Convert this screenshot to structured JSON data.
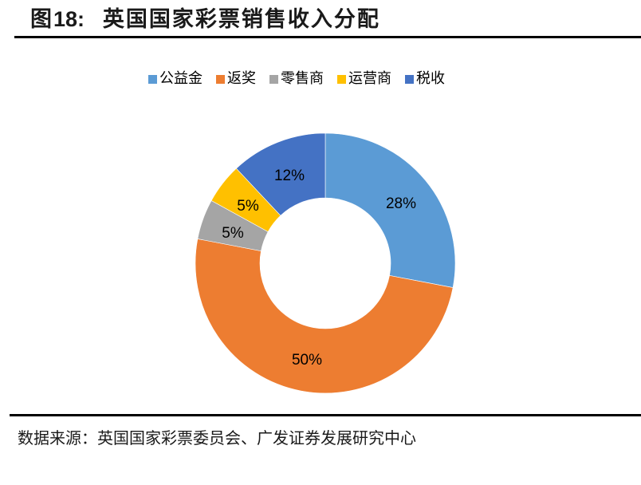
{
  "figure": {
    "title_prefix": "图",
    "title_number": "18:",
    "title_text": "英国国家彩票销售收入分配",
    "source": "数据来源：英国国家彩票委员会、广发证券发展研究中心"
  },
  "legend": [
    {
      "label": "公益金",
      "color": "#5B9BD5"
    },
    {
      "label": "返奖",
      "color": "#ED7D31"
    },
    {
      "label": "零售商",
      "color": "#A5A5A5"
    },
    {
      "label": "运营商",
      "color": "#FFC000"
    },
    {
      "label": "税收",
      "color": "#4472C4"
    }
  ],
  "slices": [
    {
      "label": "28%"
    },
    {
      "label": "50%"
    },
    {
      "label": "5%"
    },
    {
      "label": "5%"
    },
    {
      "label": "12%"
    }
  ],
  "chart_data": {
    "type": "pie",
    "subtype": "doughnut",
    "title": "英国国家彩票销售收入分配",
    "categories": [
      "公益金",
      "返奖",
      "零售商",
      "运营商",
      "税收"
    ],
    "values": [
      28,
      50,
      5,
      5,
      12
    ],
    "unit": "%",
    "colors": [
      "#5B9BD5",
      "#ED7D31",
      "#A5A5A5",
      "#FFC000",
      "#4472C4"
    ],
    "start_angle_deg": 0,
    "direction": "clockwise",
    "legend_position": "top",
    "data_labels": [
      "28%",
      "50%",
      "5%",
      "5%",
      "12%"
    ],
    "source": "英国国家彩票委员会、广发证券发展研究中心"
  }
}
